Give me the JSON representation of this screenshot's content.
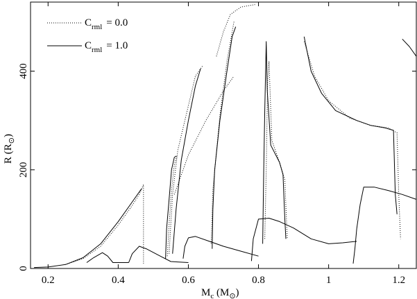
{
  "chart_data": {
    "type": "line",
    "xlabel": {
      "main": "M",
      "sub": "c",
      "unit_open": " (M",
      "unit_sub": "⊙",
      "unit_close": ")"
    },
    "ylabel": {
      "main": "R (R",
      "sub": "⊙",
      "close": ")"
    },
    "xlim": [
      0.15,
      1.25
    ],
    "ylim": [
      0,
      540
    ],
    "xticks": [
      0.2,
      0.4,
      0.6,
      0.8,
      1.0,
      1.2
    ],
    "xtick_labels": [
      "0.2",
      "0.4",
      "0.6",
      "0.8",
      "1",
      "1.2"
    ],
    "yticks": [
      0,
      200,
      400
    ],
    "ytick_labels": [
      "0",
      "200",
      "400"
    ],
    "legend": {
      "placement": "top-left",
      "entries": [
        {
          "symbol": "C",
          "sub": "rml",
          "value": "= 0.0",
          "style": "dotted"
        },
        {
          "symbol": "C",
          "sub": "rml",
          "value": "= 1.0",
          "style": "solid"
        }
      ]
    },
    "series": [
      {
        "style": "solid",
        "points": [
          [
            0.16,
            2
          ],
          [
            0.2,
            3
          ],
          [
            0.25,
            8
          ],
          [
            0.3,
            22
          ],
          [
            0.35,
            50
          ],
          [
            0.4,
            95
          ],
          [
            0.44,
            135
          ],
          [
            0.465,
            160
          ],
          [
            0.468,
            162
          ]
        ]
      },
      {
        "style": "dotted",
        "points": [
          [
            0.25,
            8
          ],
          [
            0.3,
            20
          ],
          [
            0.35,
            45
          ],
          [
            0.4,
            88
          ],
          [
            0.44,
            128
          ],
          [
            0.46,
            150
          ],
          [
            0.472,
            170
          ],
          [
            0.472,
            10
          ]
        ]
      },
      {
        "style": "solid",
        "points": [
          [
            0.31,
            12
          ],
          [
            0.33,
            22
          ],
          [
            0.355,
            32
          ],
          [
            0.37,
            25
          ],
          [
            0.385,
            12
          ],
          [
            0.43,
            12
          ]
        ]
      },
      {
        "style": "solid",
        "points": [
          [
            0.43,
            12
          ],
          [
            0.44,
            30
          ],
          [
            0.46,
            45
          ],
          [
            0.48,
            40
          ],
          [
            0.52,
            25
          ],
          [
            0.55,
            14
          ],
          [
            0.6,
            12
          ]
        ]
      },
      {
        "style": "solid",
        "points": [
          [
            0.535,
            20
          ],
          [
            0.538,
            80
          ],
          [
            0.545,
            140
          ],
          [
            0.552,
            200
          ],
          [
            0.56,
            225
          ],
          [
            0.565,
            228
          ]
        ]
      },
      {
        "style": "dotted",
        "points": [
          [
            0.54,
            25
          ],
          [
            0.545,
            90
          ],
          [
            0.552,
            160
          ],
          [
            0.56,
            210
          ],
          [
            0.568,
            230
          ]
        ]
      },
      {
        "style": "solid",
        "points": [
          [
            0.555,
            30
          ],
          [
            0.565,
            120
          ],
          [
            0.58,
            220
          ],
          [
            0.6,
            300
          ],
          [
            0.62,
            370
          ],
          [
            0.635,
            405
          ]
        ]
      },
      {
        "style": "dotted",
        "points": [
          [
            0.545,
            30
          ],
          [
            0.555,
            150
          ],
          [
            0.57,
            240
          ],
          [
            0.6,
            330
          ],
          [
            0.62,
            390
          ],
          [
            0.64,
            410
          ]
        ]
      },
      {
        "style": "dotted",
        "points": [
          [
            0.56,
            150
          ],
          [
            0.6,
            230
          ],
          [
            0.65,
            300
          ],
          [
            0.7,
            360
          ],
          [
            0.73,
            390
          ]
        ]
      },
      {
        "style": "solid",
        "points": [
          [
            0.585,
            20
          ],
          [
            0.59,
            45
          ],
          [
            0.6,
            62
          ],
          [
            0.62,
            65
          ],
          [
            0.66,
            55
          ],
          [
            0.7,
            45
          ],
          [
            0.75,
            35
          ],
          [
            0.8,
            25
          ]
        ]
      },
      {
        "style": "solid",
        "points": [
          [
            0.668,
            40
          ],
          [
            0.67,
            120
          ],
          [
            0.675,
            200
          ],
          [
            0.69,
            300
          ],
          [
            0.71,
            400
          ],
          [
            0.725,
            470
          ],
          [
            0.735,
            490
          ]
        ]
      },
      {
        "style": "dotted",
        "points": [
          [
            0.665,
            50
          ],
          [
            0.67,
            160
          ],
          [
            0.69,
            310
          ],
          [
            0.71,
            420
          ],
          [
            0.73,
            500
          ]
        ]
      },
      {
        "style": "dotted",
        "points": [
          [
            0.68,
            430
          ],
          [
            0.7,
            480
          ],
          [
            0.72,
            515
          ],
          [
            0.75,
            530
          ],
          [
            0.79,
            535
          ]
        ]
      },
      {
        "style": "solid",
        "points": [
          [
            0.78,
            15
          ],
          [
            0.785,
            60
          ],
          [
            0.8,
            100
          ],
          [
            0.83,
            102
          ],
          [
            0.86,
            95
          ],
          [
            0.9,
            82
          ],
          [
            0.95,
            60
          ],
          [
            1.0,
            50
          ],
          [
            1.04,
            52
          ],
          [
            1.08,
            55
          ]
        ]
      },
      {
        "style": "solid",
        "points": [
          [
            0.812,
            50
          ],
          [
            0.815,
            200
          ],
          [
            0.818,
            320
          ],
          [
            0.822,
            460
          ],
          [
            0.825,
            360
          ],
          [
            0.835,
            250
          ],
          [
            0.86,
            215
          ],
          [
            0.87,
            190
          ],
          [
            0.875,
            100
          ],
          [
            0.878,
            60
          ]
        ]
      },
      {
        "style": "dotted",
        "points": [
          [
            0.818,
            60
          ],
          [
            0.822,
            200
          ],
          [
            0.826,
            380
          ],
          [
            0.83,
            420
          ],
          [
            0.838,
            260
          ],
          [
            0.86,
            215
          ],
          [
            0.875,
            180
          ],
          [
            0.882,
            60
          ]
        ]
      },
      {
        "style": "solid",
        "points": [
          [
            0.93,
            470
          ],
          [
            0.95,
            400
          ],
          [
            0.98,
            355
          ],
          [
            1.02,
            320
          ],
          [
            1.08,
            300
          ],
          [
            1.12,
            290
          ],
          [
            1.16,
            285
          ],
          [
            1.185,
            280
          ],
          [
            1.19,
            150
          ],
          [
            1.195,
            110
          ]
        ]
      },
      {
        "style": "dotted",
        "points": [
          [
            0.93,
            460
          ],
          [
            0.96,
            390
          ],
          [
            1.0,
            340
          ],
          [
            1.06,
            305
          ],
          [
            1.12,
            290
          ],
          [
            1.17,
            285
          ],
          [
            1.195,
            275
          ],
          [
            1.2,
            150
          ],
          [
            1.205,
            60
          ]
        ]
      },
      {
        "style": "solid",
        "points": [
          [
            1.07,
            10
          ],
          [
            1.075,
            40
          ],
          [
            1.08,
            80
          ],
          [
            1.09,
            130
          ],
          [
            1.1,
            165
          ],
          [
            1.13,
            165
          ],
          [
            1.17,
            158
          ],
          [
            1.21,
            150
          ],
          [
            1.25,
            140
          ]
        ]
      },
      {
        "style": "solid",
        "points": [
          [
            1.21,
            465
          ],
          [
            1.23,
            450
          ],
          [
            1.25,
            430
          ]
        ]
      }
    ]
  }
}
